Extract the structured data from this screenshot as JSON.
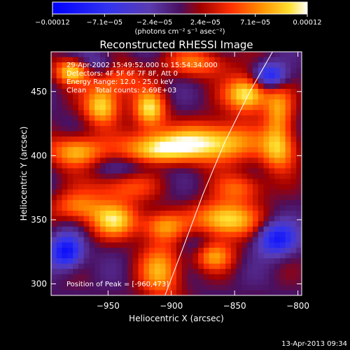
{
  "chart_data": {
    "type": "heatmap",
    "title": "Reconstructed RHESSI Image",
    "xlabel": "Heliocentric X (arcsec)",
    "ylabel": "Heliocentric Y (arcsec)",
    "xlim": [
      -995,
      -797
    ],
    "ylim": [
      291,
      481
    ],
    "x_ticks": [
      -950,
      -900,
      -850,
      -800
    ],
    "x_tick_labels": [
      "−950",
      "−900",
      "−850",
      "−800"
    ],
    "y_ticks": [
      300,
      350,
      400,
      450
    ],
    "y_tick_labels": [
      "300",
      "350",
      "400",
      "450"
    ],
    "colorbar": {
      "ticks": [
        -0.00012,
        -7.1e-05,
        -2.4e-05,
        2.4e-05,
        7.1e-05,
        0.00012
      ],
      "tick_labels": [
        "−0.00012",
        "−7.1e−05",
        "−2.4e−05",
        "2.4e−05",
        "7.1e−05",
        "0.00012"
      ],
      "unit_label": "(photons cm⁻² s⁻¹ asec⁻²)",
      "colormap": "rainbow-to-red-yellow-white"
    },
    "annotations": [
      "29-Apr-2002 15:49:52.000 to 15:54:34.000",
      "Detectors: 4F 5F 6F 7F 8F, Att 0",
      "Energy Range: 12.0 - 25.0 keV",
      "Clean    Total counts: 2.69E+03"
    ],
    "peak_label": "Position of Peak = [-960,473]",
    "limb_curve": [
      [
        -905,
        291
      ],
      [
        -890,
        330
      ],
      [
        -875,
        370
      ],
      [
        -858,
        410
      ],
      [
        -838,
        450
      ],
      [
        -820,
        481
      ]
    ],
    "blobs": [
      {
        "x": -978,
        "y": 466,
        "a": 0.9,
        "sx": 10,
        "sy": 7
      },
      {
        "x": -945,
        "y": 460,
        "a": 0.55,
        "sx": 16,
        "sy": 10
      },
      {
        "x": -880,
        "y": 472,
        "a": 0.55,
        "sx": 18,
        "sy": 8
      },
      {
        "x": -840,
        "y": 448,
        "a": 1.0,
        "sx": 12,
        "sy": 10
      },
      {
        "x": -815,
        "y": 435,
        "a": 0.6,
        "sx": 8,
        "sy": 14
      },
      {
        "x": -955,
        "y": 438,
        "a": 0.85,
        "sx": 10,
        "sy": 10
      },
      {
        "x": -917,
        "y": 436,
        "a": 0.85,
        "sx": 9,
        "sy": 10
      },
      {
        "x": -975,
        "y": 403,
        "a": 0.8,
        "sx": 15,
        "sy": 9
      },
      {
        "x": -912,
        "y": 405,
        "a": 0.95,
        "sx": 20,
        "sy": 10
      },
      {
        "x": -865,
        "y": 410,
        "a": 0.95,
        "sx": 22,
        "sy": 11
      },
      {
        "x": -815,
        "y": 405,
        "a": 0.75,
        "sx": 10,
        "sy": 12
      },
      {
        "x": -940,
        "y": 375,
        "a": 0.45,
        "sx": 20,
        "sy": 8
      },
      {
        "x": -845,
        "y": 375,
        "a": 0.5,
        "sx": 14,
        "sy": 8
      },
      {
        "x": -975,
        "y": 360,
        "a": 0.55,
        "sx": 14,
        "sy": 8
      },
      {
        "x": -945,
        "y": 350,
        "a": 0.8,
        "sx": 14,
        "sy": 10
      },
      {
        "x": -907,
        "y": 345,
        "a": 0.6,
        "sx": 12,
        "sy": 8
      },
      {
        "x": -858,
        "y": 350,
        "a": 0.95,
        "sx": 18,
        "sy": 10
      },
      {
        "x": -908,
        "y": 310,
        "a": 0.7,
        "sx": 12,
        "sy": 16
      },
      {
        "x": -868,
        "y": 322,
        "a": 0.7,
        "sx": 12,
        "sy": 8
      },
      {
        "x": -960,
        "y": 470,
        "a": -0.45,
        "sx": 12,
        "sy": 8
      },
      {
        "x": -822,
        "y": 462,
        "a": -0.8,
        "sx": 9,
        "sy": 7
      },
      {
        "x": -983,
        "y": 325,
        "a": -0.9,
        "sx": 9,
        "sy": 9
      },
      {
        "x": -817,
        "y": 335,
        "a": -0.8,
        "sx": 11,
        "sy": 9
      },
      {
        "x": -925,
        "y": 392,
        "a": -0.3,
        "sx": 25,
        "sy": 6
      },
      {
        "x": -880,
        "y": 330,
        "a": -0.3,
        "sx": 10,
        "sy": 10
      }
    ]
  },
  "footer": {
    "date": "13-Apr-2013 09:34"
  }
}
